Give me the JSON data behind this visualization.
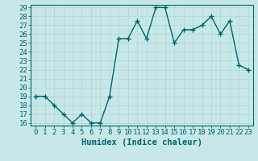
{
  "x": [
    0,
    1,
    2,
    3,
    4,
    5,
    6,
    7,
    8,
    9,
    10,
    11,
    12,
    13,
    14,
    15,
    16,
    17,
    18,
    19,
    20,
    21,
    22,
    23
  ],
  "y": [
    19,
    19,
    18,
    17,
    16,
    17,
    16,
    16,
    19,
    25.5,
    25.5,
    27.5,
    25.5,
    29,
    29,
    25,
    26.5,
    26.5,
    27,
    28,
    26,
    27.5,
    22.5,
    22
  ],
  "line_color": "#006666",
  "marker": "+",
  "bg_color": "#c8e8e8",
  "grid_color": "#b0d8d8",
  "xlabel": "Humidex (Indice chaleur)",
  "ylim_min": 16,
  "ylim_max": 29,
  "xlim_min": -0.5,
  "xlim_max": 23.5,
  "yticks": [
    16,
    17,
    18,
    19,
    20,
    21,
    22,
    23,
    24,
    25,
    26,
    27,
    28,
    29
  ],
  "xticks": [
    0,
    1,
    2,
    3,
    4,
    5,
    6,
    7,
    8,
    9,
    10,
    11,
    12,
    13,
    14,
    15,
    16,
    17,
    18,
    19,
    20,
    21,
    22,
    23
  ],
  "tick_color": "#006666",
  "label_color": "#006666",
  "font_size": 6.5,
  "xlabel_fontsize": 7.5,
  "linewidth": 1.0,
  "marker_size": 4
}
